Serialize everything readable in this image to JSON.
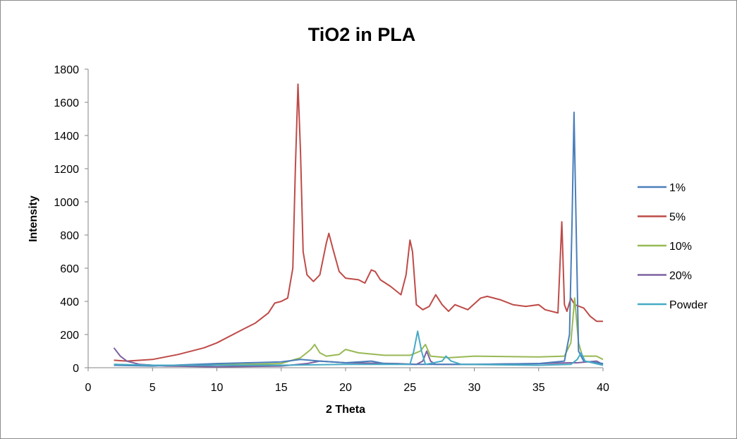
{
  "chart_data": {
    "type": "line",
    "title": "TiO2 in PLA",
    "xlabel": "2 Theta",
    "ylabel": "Intensity",
    "xlim": [
      0,
      40
    ],
    "ylim": [
      0,
      1800
    ],
    "xticks": [
      0,
      5,
      10,
      15,
      20,
      25,
      30,
      35,
      40
    ],
    "yticks": [
      0,
      200,
      400,
      600,
      800,
      1000,
      1200,
      1400,
      1600,
      1800
    ],
    "grid": false,
    "legend_position": "right",
    "series": [
      {
        "name": "1%",
        "color": "#4A7EBB",
        "points": [
          [
            2,
            15
          ],
          [
            5,
            10
          ],
          [
            10,
            25
          ],
          [
            15,
            35
          ],
          [
            16.5,
            50
          ],
          [
            18,
            40
          ],
          [
            20,
            30
          ],
          [
            22,
            40
          ],
          [
            23,
            25
          ],
          [
            25,
            20
          ],
          [
            30,
            20
          ],
          [
            35,
            25
          ],
          [
            37,
            40
          ],
          [
            37.4,
            200
          ],
          [
            37.6,
            900
          ],
          [
            37.75,
            1540
          ],
          [
            37.9,
            900
          ],
          [
            38.1,
            100
          ],
          [
            38.5,
            40
          ],
          [
            40,
            25
          ]
        ]
      },
      {
        "name": "5%",
        "color": "#BE4B48",
        "points": [
          [
            2,
            45
          ],
          [
            3,
            40
          ],
          [
            5,
            50
          ],
          [
            7,
            80
          ],
          [
            9,
            120
          ],
          [
            10,
            150
          ],
          [
            12,
            230
          ],
          [
            13,
            270
          ],
          [
            14,
            330
          ],
          [
            14.5,
            390
          ],
          [
            15,
            400
          ],
          [
            15.5,
            420
          ],
          [
            15.9,
            600
          ],
          [
            16.1,
            1200
          ],
          [
            16.3,
            1710
          ],
          [
            16.5,
            1300
          ],
          [
            16.7,
            700
          ],
          [
            17,
            560
          ],
          [
            17.5,
            520
          ],
          [
            18,
            560
          ],
          [
            18.5,
            750
          ],
          [
            18.7,
            810
          ],
          [
            19,
            720
          ],
          [
            19.5,
            580
          ],
          [
            20,
            540
          ],
          [
            21,
            530
          ],
          [
            21.5,
            510
          ],
          [
            22,
            590
          ],
          [
            22.3,
            580
          ],
          [
            22.7,
            530
          ],
          [
            23.5,
            490
          ],
          [
            24.3,
            440
          ],
          [
            24.7,
            560
          ],
          [
            25,
            770
          ],
          [
            25.2,
            700
          ],
          [
            25.5,
            380
          ],
          [
            26,
            350
          ],
          [
            26.5,
            370
          ],
          [
            27,
            440
          ],
          [
            27.5,
            380
          ],
          [
            28,
            340
          ],
          [
            28.5,
            380
          ],
          [
            29.5,
            350
          ],
          [
            30.5,
            420
          ],
          [
            31,
            430
          ],
          [
            32,
            410
          ],
          [
            33,
            380
          ],
          [
            34,
            370
          ],
          [
            35,
            380
          ],
          [
            35.5,
            350
          ],
          [
            36.5,
            330
          ],
          [
            36.8,
            880
          ],
          [
            37,
            380
          ],
          [
            37.2,
            340
          ],
          [
            37.5,
            420
          ],
          [
            37.8,
            380
          ],
          [
            38.5,
            360
          ],
          [
            39,
            310
          ],
          [
            39.5,
            280
          ],
          [
            40,
            280
          ]
        ]
      },
      {
        "name": "10%",
        "color": "#98B954",
        "points": [
          [
            2,
            20
          ],
          [
            4,
            15
          ],
          [
            8,
            15
          ],
          [
            12,
            20
          ],
          [
            15,
            25
          ],
          [
            16.5,
            60
          ],
          [
            17.3,
            110
          ],
          [
            17.6,
            140
          ],
          [
            18,
            90
          ],
          [
            18.5,
            70
          ],
          [
            19.5,
            80
          ],
          [
            20,
            110
          ],
          [
            21,
            90
          ],
          [
            23,
            75
          ],
          [
            25,
            75
          ],
          [
            25.8,
            100
          ],
          [
            26.2,
            140
          ],
          [
            26.6,
            70
          ],
          [
            28,
            60
          ],
          [
            30,
            70
          ],
          [
            35,
            65
          ],
          [
            37,
            70
          ],
          [
            37.5,
            150
          ],
          [
            37.8,
            420
          ],
          [
            38.1,
            150
          ],
          [
            38.4,
            70
          ],
          [
            39.5,
            70
          ],
          [
            40,
            50
          ]
        ]
      },
      {
        "name": "20%",
        "color": "#7D60A0",
        "points": [
          [
            2,
            120
          ],
          [
            2.5,
            70
          ],
          [
            3,
            40
          ],
          [
            4,
            20
          ],
          [
            6,
            10
          ],
          [
            10,
            5
          ],
          [
            15,
            10
          ],
          [
            17,
            25
          ],
          [
            18,
            40
          ],
          [
            20,
            30
          ],
          [
            24,
            25
          ],
          [
            25.5,
            20
          ],
          [
            26,
            40
          ],
          [
            26.3,
            100
          ],
          [
            26.6,
            40
          ],
          [
            27,
            20
          ],
          [
            30,
            20
          ],
          [
            35,
            25
          ],
          [
            37.5,
            30
          ],
          [
            38,
            30
          ],
          [
            39.5,
            40
          ],
          [
            40,
            20
          ]
        ]
      },
      {
        "name": "Powder",
        "color": "#46AAC5",
        "points": [
          [
            2,
            20
          ],
          [
            5,
            15
          ],
          [
            10,
            15
          ],
          [
            15,
            15
          ],
          [
            20,
            20
          ],
          [
            25,
            20
          ],
          [
            25.3,
            100
          ],
          [
            25.6,
            220
          ],
          [
            25.9,
            100
          ],
          [
            26.2,
            20
          ],
          [
            27.5,
            40
          ],
          [
            27.8,
            70
          ],
          [
            28.2,
            40
          ],
          [
            29,
            20
          ],
          [
            35,
            15
          ],
          [
            37.5,
            20
          ],
          [
            38,
            50
          ],
          [
            38.3,
            90
          ],
          [
            38.6,
            40
          ],
          [
            40,
            15
          ]
        ]
      }
    ]
  }
}
